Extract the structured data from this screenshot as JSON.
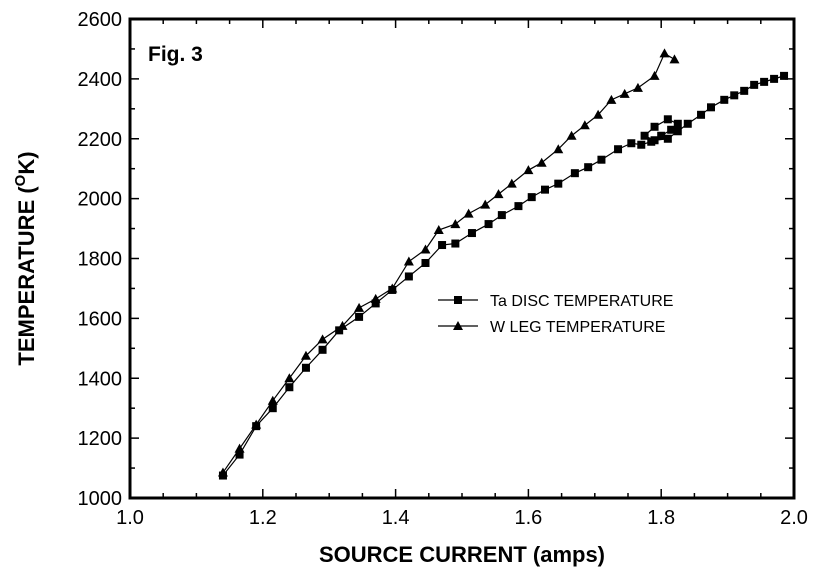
{
  "chart_data": {
    "type": "line",
    "annotation": "Fig. 3",
    "xlabel": "SOURCE CURRENT (amps)",
    "ylabel": {
      "prefix": "TEMPERATURE (",
      "superscript": "O",
      "suffix": "K)"
    },
    "xlim": [
      1.0,
      2.0
    ],
    "ylim": [
      1000,
      2600
    ],
    "xticks": [
      "1.0",
      "1.2",
      "1.4",
      "1.6",
      "1.8",
      "2.0"
    ],
    "yticks": [
      "1000",
      "1200",
      "1400",
      "1600",
      "1800",
      "2000",
      "2200",
      "2400",
      "2600"
    ],
    "grid": false,
    "legend_position": "center-right",
    "series": [
      {
        "name": "Ta DISC TEMPERATURE",
        "marker": "square",
        "x": [
          1.14,
          1.165,
          1.19,
          1.215,
          1.24,
          1.265,
          1.29,
          1.315,
          1.345,
          1.37,
          1.395,
          1.42,
          1.445,
          1.47,
          1.49,
          1.515,
          1.54,
          1.56,
          1.585,
          1.605,
          1.625,
          1.645,
          1.67,
          1.69,
          1.71,
          1.735,
          1.755,
          1.77,
          1.785,
          1.8,
          1.815,
          1.825,
          1.81,
          1.79,
          1.775,
          1.79,
          1.81,
          1.825,
          1.84,
          1.86,
          1.875,
          1.895,
          1.91,
          1.925,
          1.94,
          1.955,
          1.97,
          1.985
        ],
        "y": [
          1075,
          1145,
          1240,
          1300,
          1370,
          1435,
          1495,
          1560,
          1605,
          1650,
          1695,
          1740,
          1785,
          1845,
          1850,
          1885,
          1915,
          1945,
          1975,
          2005,
          2030,
          2050,
          2085,
          2105,
          2130,
          2165,
          2185,
          2180,
          2190,
          2210,
          2230,
          2250,
          2265,
          2240,
          2210,
          2195,
          2200,
          2225,
          2250,
          2280,
          2305,
          2330,
          2345,
          2360,
          2380,
          2390,
          2400,
          2410
        ]
      },
      {
        "name": "W LEG TEMPERATURE",
        "marker": "triangle",
        "x": [
          1.14,
          1.165,
          1.19,
          1.215,
          1.24,
          1.265,
          1.29,
          1.32,
          1.345,
          1.37,
          1.395,
          1.42,
          1.445,
          1.465,
          1.49,
          1.51,
          1.535,
          1.555,
          1.575,
          1.6,
          1.62,
          1.645,
          1.665,
          1.685,
          1.705,
          1.725,
          1.745,
          1.765,
          1.79,
          1.805,
          1.82
        ],
        "y": [
          1085,
          1165,
          1245,
          1325,
          1400,
          1475,
          1530,
          1575,
          1635,
          1665,
          1700,
          1790,
          1830,
          1895,
          1915,
          1950,
          1980,
          2015,
          2050,
          2095,
          2120,
          2165,
          2210,
          2245,
          2280,
          2330,
          2350,
          2370,
          2410,
          2485,
          2465
        ]
      }
    ]
  }
}
